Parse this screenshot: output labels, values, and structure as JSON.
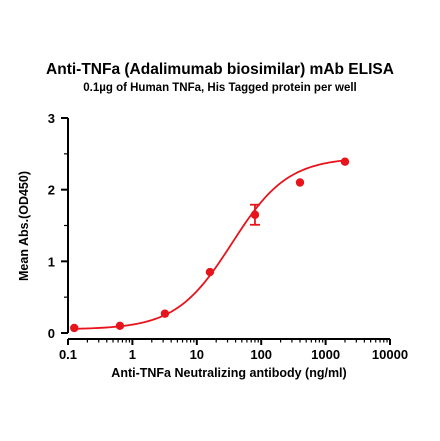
{
  "chart_data": {
    "type": "scatter",
    "title": "Anti-TNFa (Adalimumab biosimilar) mAb ELISA",
    "subtitle": "0.1µg of Human TNFa, His Tagged protein per well",
    "xlabel": "Anti-TNFa Neutralizing antibody (ng/ml)",
    "ylabel": "Mean Abs.(OD450)",
    "xscale": "log",
    "xlim": [
      0.1,
      10000
    ],
    "ylim": [
      0,
      3
    ],
    "xticks": [
      "0.1",
      "1",
      "10",
      "100",
      "1000",
      "10000"
    ],
    "yticks": [
      "0",
      "1",
      "2",
      "3"
    ],
    "grid": false,
    "color": "#e8141c",
    "series": [
      {
        "x": [
          0.125,
          0.64,
          3.2,
          16,
          80,
          400,
          2000
        ],
        "y": [
          0.07,
          0.1,
          0.27,
          0.85,
          1.65,
          2.1,
          2.39
        ],
        "error": [
          0,
          0,
          0,
          0,
          0.14,
          0,
          0
        ]
      }
    ],
    "fit": {
      "model": "4PL",
      "bottom": 0.05,
      "top": 2.45,
      "ec50": 35,
      "hill": 1.0
    }
  }
}
